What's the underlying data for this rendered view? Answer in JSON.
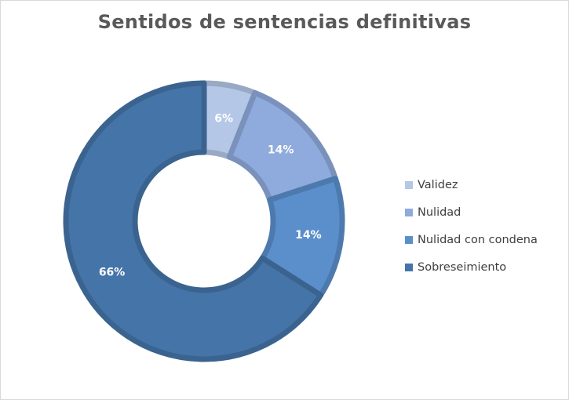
{
  "chart_data": {
    "type": "pie",
    "title": "Sentidos de sentencias definitivas",
    "donut": true,
    "legend_position": "right",
    "series": [
      {
        "name": "Validez",
        "value": 6,
        "label": "6%",
        "color": "#b4c7e7"
      },
      {
        "name": "Nulidad",
        "value": 14,
        "label": "14%",
        "color": "#8faadc"
      },
      {
        "name": "Nulidad con condena",
        "value": 14,
        "label": "14%",
        "color": "#5b8fcc"
      },
      {
        "name": "Sobreseimiento",
        "value": 66,
        "label": "66%",
        "color": "#4574a8"
      }
    ]
  }
}
